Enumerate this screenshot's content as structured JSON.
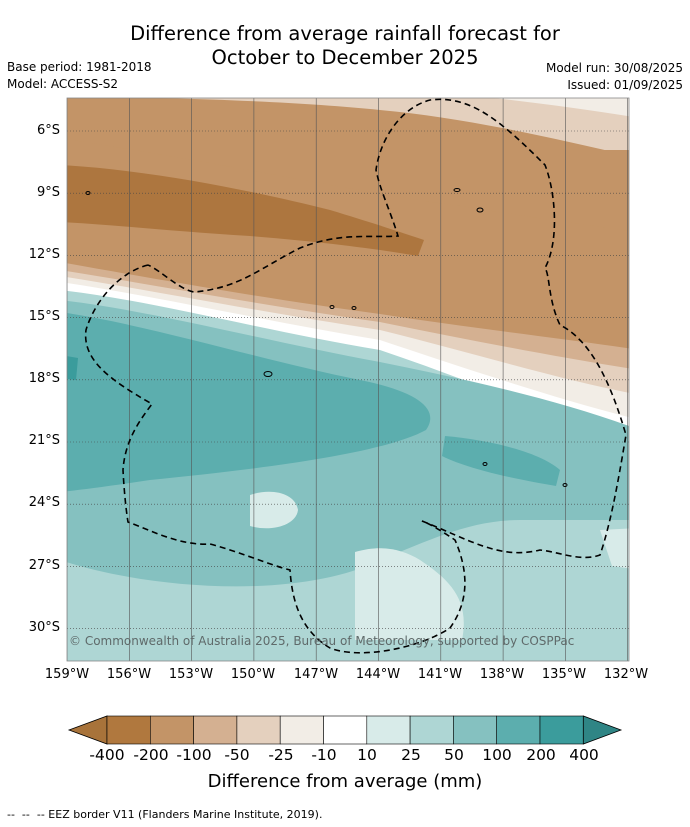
{
  "header": {
    "title_line1": "Difference from average rainfall forecast for",
    "title_line2": "October to December 2025",
    "base_period": "Base period: 1981-2018",
    "model": "Model: ACCESS-S2",
    "model_run": "Model run: 30/08/2025",
    "issued": "Issued: 01/09/2025"
  },
  "map": {
    "lat_labels": [
      "6°S",
      "9°S",
      "12°S",
      "15°S",
      "18°S",
      "21°S",
      "24°S",
      "27°S",
      "30°S"
    ],
    "lon_labels": [
      "159°W",
      "156°W",
      "153°W",
      "150°W",
      "147°W",
      "144°W",
      "141°W",
      "138°W",
      "135°W",
      "132°W"
    ],
    "copyright": "© Commonwealth of Australia 2025, Bureau of Meteorology, supported by COSPPac"
  },
  "legend": {
    "ticks": [
      "-400",
      "-200",
      "-100",
      "-50",
      "-25",
      "-10",
      "10",
      "25",
      "50",
      "100",
      "200",
      "400"
    ],
    "title": "Difference from average (mm)",
    "colors": [
      "#a8733a",
      "#b0783e",
      "#c39467",
      "#d4b091",
      "#e4d0be",
      "#f2ede6",
      "#ffffff",
      "#d8ebe9",
      "#aed6d4",
      "#85c1c0",
      "#5caeae",
      "#3b9c9c",
      "#2f8585"
    ]
  },
  "footer": "--  --  -- EEZ border V11 (Flanders Marine Institute, 2019)."
}
